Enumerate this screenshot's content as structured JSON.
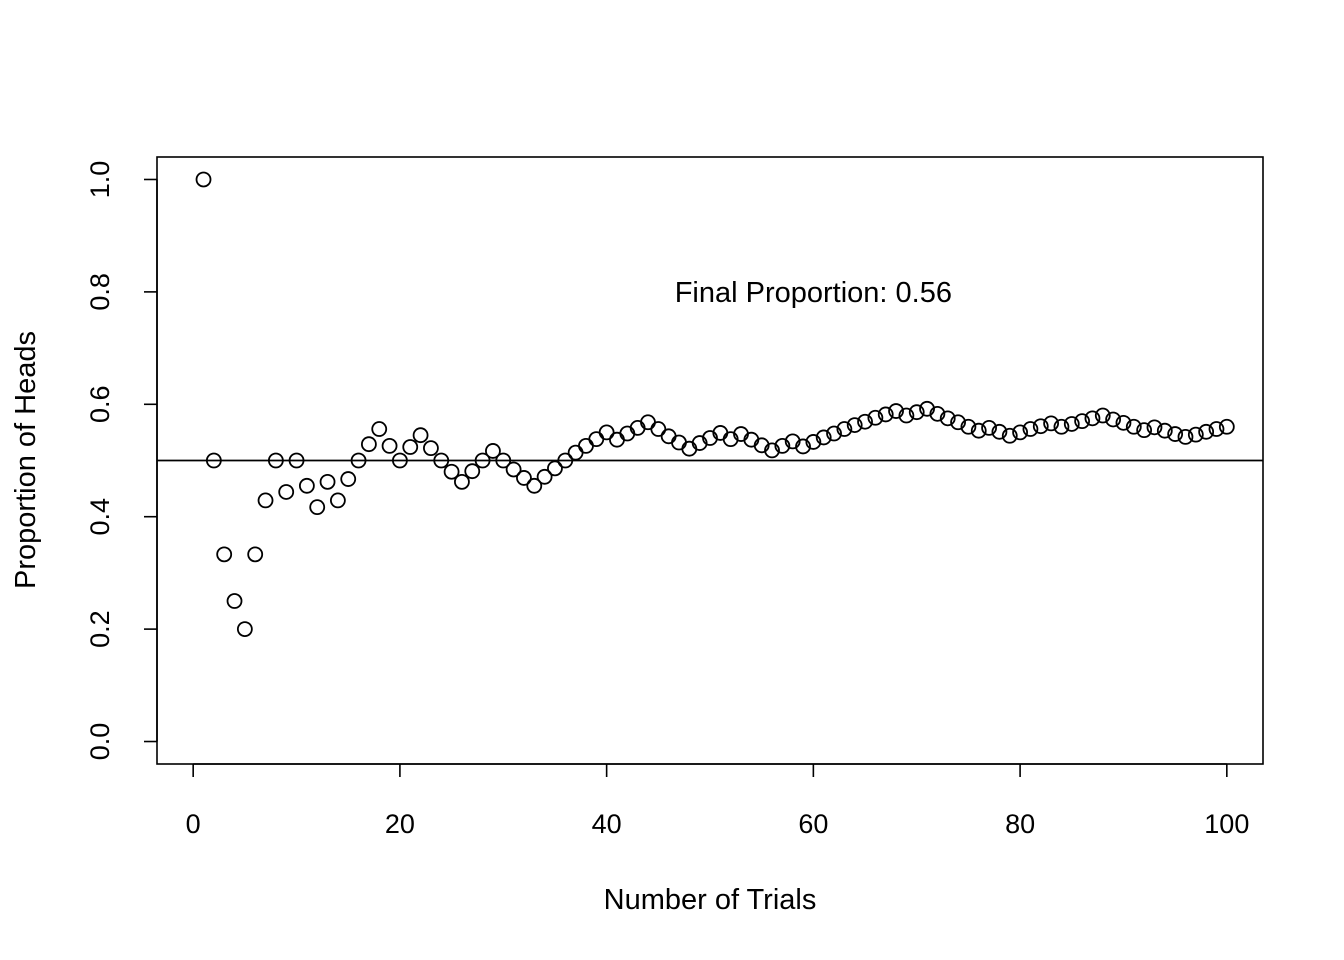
{
  "chart_data": {
    "type": "scatter",
    "title": "",
    "xlabel": "Number of Trials",
    "ylabel": "Proportion of Heads",
    "xlim": [
      -3.5,
      103.5
    ],
    "ylim": [
      -0.04,
      1.04
    ],
    "x_ticks": [
      0,
      20,
      40,
      60,
      80,
      100
    ],
    "x_tick_labels": [
      "0",
      "20",
      "40",
      "60",
      "80",
      "100"
    ],
    "y_ticks": [
      0.0,
      0.2,
      0.4,
      0.6,
      0.8,
      1.0
    ],
    "y_tick_labels": [
      "0.0",
      "0.2",
      "0.4",
      "0.6",
      "0.8",
      "1.0"
    ],
    "reference_line": {
      "y": 0.5
    },
    "annotation": {
      "text": "Final Proportion:  0.56",
      "x": 60,
      "y": 0.8
    },
    "grid": false,
    "x": [
      1,
      2,
      3,
      4,
      5,
      6,
      7,
      8,
      9,
      10,
      11,
      12,
      13,
      14,
      15,
      16,
      17,
      18,
      19,
      20,
      21,
      22,
      23,
      24,
      25,
      26,
      27,
      28,
      29,
      30,
      31,
      32,
      33,
      34,
      35,
      36,
      37,
      38,
      39,
      40,
      41,
      42,
      43,
      44,
      45,
      46,
      47,
      48,
      49,
      50,
      51,
      52,
      53,
      54,
      55,
      56,
      57,
      58,
      59,
      60,
      61,
      62,
      63,
      64,
      65,
      66,
      67,
      68,
      69,
      70,
      71,
      72,
      73,
      74,
      75,
      76,
      77,
      78,
      79,
      80,
      81,
      82,
      83,
      84,
      85,
      86,
      87,
      88,
      89,
      90,
      91,
      92,
      93,
      94,
      95,
      96,
      97,
      98,
      99,
      100
    ],
    "y": [
      1.0,
      0.5,
      0.333,
      0.25,
      0.2,
      0.333,
      0.429,
      0.5,
      0.444,
      0.5,
      0.455,
      0.417,
      0.462,
      0.429,
      0.467,
      0.5,
      0.529,
      0.556,
      0.526,
      0.5,
      0.524,
      0.545,
      0.522,
      0.5,
      0.48,
      0.462,
      0.481,
      0.5,
      0.517,
      0.5,
      0.484,
      0.469,
      0.455,
      0.471,
      0.486,
      0.5,
      0.514,
      0.526,
      0.538,
      0.55,
      0.537,
      0.548,
      0.558,
      0.568,
      0.556,
      0.543,
      0.532,
      0.521,
      0.531,
      0.54,
      0.549,
      0.538,
      0.547,
      0.537,
      0.527,
      0.518,
      0.526,
      0.534,
      0.525,
      0.533,
      0.541,
      0.548,
      0.556,
      0.563,
      0.569,
      0.576,
      0.582,
      0.588,
      0.58,
      0.586,
      0.592,
      0.583,
      0.575,
      0.568,
      0.56,
      0.553,
      0.558,
      0.551,
      0.544,
      0.55,
      0.556,
      0.561,
      0.566,
      0.56,
      0.565,
      0.57,
      0.575,
      0.58,
      0.573,
      0.567,
      0.56,
      0.554,
      0.559,
      0.553,
      0.547,
      0.542,
      0.546,
      0.551,
      0.556,
      0.56
    ]
  }
}
